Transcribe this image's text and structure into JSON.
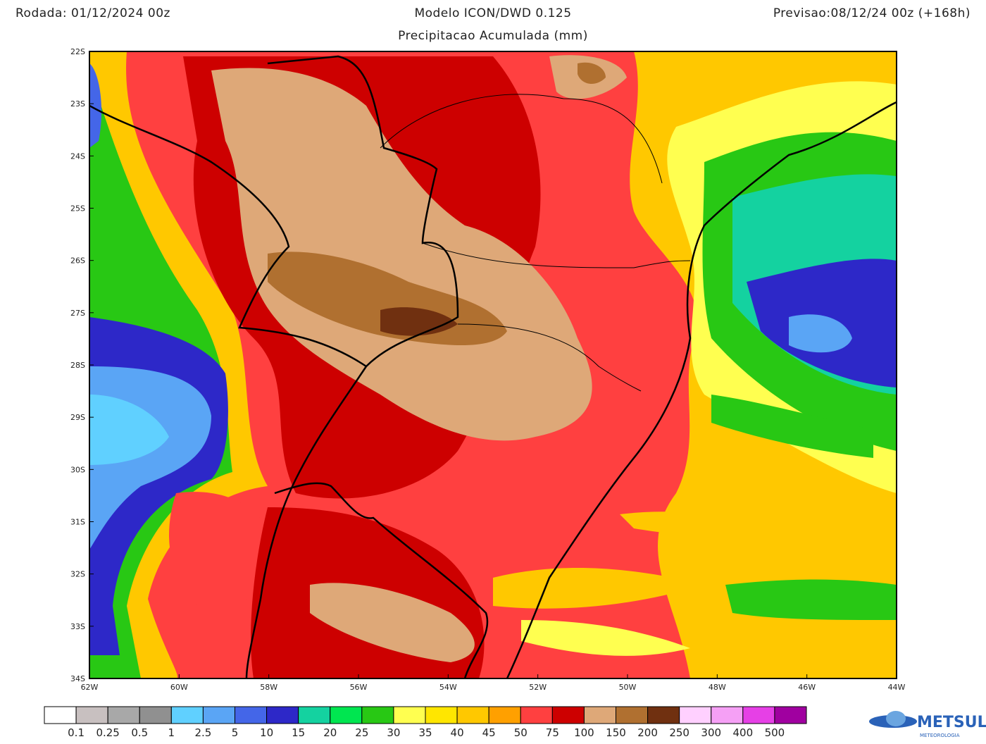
{
  "header": {
    "run": "Rodada: 01/12/2024 00z",
    "model": "Modelo ICON/DWD 0.125",
    "forecast": "Previsao:08/12/24 00z (+168h)",
    "subtitle": "Precipitacao Acumulada (mm)"
  },
  "map": {
    "lat_labels": [
      "22S",
      "23S",
      "24S",
      "25S",
      "26S",
      "27S",
      "28S",
      "29S",
      "30S",
      "31S",
      "32S",
      "33S",
      "34S"
    ],
    "lon_labels": [
      "62W",
      "60W",
      "58W",
      "56W",
      "54W",
      "52W",
      "50W",
      "48W",
      "46W",
      "44W"
    ]
  },
  "colorbar": {
    "colors": [
      "#ffffff",
      "#c8c0c0",
      "#a8a8a8",
      "#909090",
      "#60d0ff",
      "#5aa5f5",
      "#4466e8",
      "#2d28c8",
      "#14d2a0",
      "#00e650",
      "#28c814",
      "#ffff50",
      "#ffe600",
      "#ffc800",
      "#ffa000",
      "#ff4040",
      "#cd0000",
      "#dea878",
      "#b07030",
      "#703010",
      "#ffd0ff",
      "#f5a0f5",
      "#e640e6",
      "#a000a0"
    ],
    "labels": [
      0.1,
      0.25,
      0.5,
      1,
      2.5,
      5,
      10,
      15,
      20,
      25,
      30,
      35,
      40,
      45,
      50,
      75,
      100,
      150,
      200,
      250,
      300,
      400,
      500
    ]
  },
  "logo": {
    "name": "METSUL",
    "tagline": "METEOROLOGIA"
  }
}
